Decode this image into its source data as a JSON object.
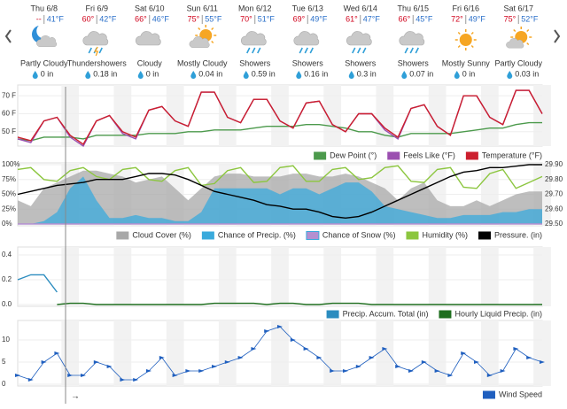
{
  "forecast": [
    {
      "date": "Thu 6/8",
      "high": "--",
      "low": "41°F",
      "condition": "Partly Cloudy",
      "precip": "0 in"
    },
    {
      "date": "Fri 6/9",
      "high": "60°",
      "low": "42°F",
      "condition": "Thundershowers",
      "precip": "0.18 in"
    },
    {
      "date": "Sat 6/10",
      "high": "66°",
      "low": "46°F",
      "condition": "Cloudy",
      "precip": "0 in"
    },
    {
      "date": "Sun 6/11",
      "high": "75°",
      "low": "55°F",
      "condition": "Mostly Cloudy",
      "precip": "0.04 in"
    },
    {
      "date": "Mon 6/12",
      "high": "70°",
      "low": "51°F",
      "condition": "Showers",
      "precip": "0.59 in"
    },
    {
      "date": "Tue 6/13",
      "high": "69°",
      "low": "49°F",
      "condition": "Showers",
      "precip": "0.16 in"
    },
    {
      "date": "Wed 6/14",
      "high": "61°",
      "low": "47°F",
      "condition": "Showers",
      "precip": "0.3 in"
    },
    {
      "date": "Thu 6/15",
      "high": "66°",
      "low": "45°F",
      "condition": "Showers",
      "precip": "0.07 in"
    },
    {
      "date": "Fri 6/16",
      "high": "72°",
      "low": "49°F",
      "condition": "Mostly Sunny",
      "precip": "0 in"
    },
    {
      "date": "Sat 6/17",
      "high": "75°",
      "low": "52°F",
      "condition": "Partly Cloudy",
      "precip": "0.03 in"
    }
  ],
  "chart_data": [
    {
      "type": "line",
      "ylim": [
        43,
        75
      ],
      "yticks": [
        {
          "value": 50,
          "label": "50 F"
        },
        {
          "value": 60,
          "label": "60 F"
        },
        {
          "value": 70,
          "label": "70 F"
        }
      ],
      "grid": true,
      "series": [
        {
          "name": "Dew Point (°)",
          "color": "#4c9a4c",
          "values": [
            46,
            45,
            47,
            47,
            47,
            46,
            48,
            48,
            48,
            48,
            49,
            49,
            49,
            50,
            50,
            51,
            51,
            51,
            52,
            53,
            53,
            53,
            54,
            54,
            53,
            52,
            50,
            50,
            48,
            47,
            49,
            49,
            49,
            49,
            50,
            51,
            52,
            52,
            54,
            55,
            55
          ]
        },
        {
          "name": "Feels Like (°F)",
          "color": "#9b4fb0",
          "values": [
            46,
            44,
            56,
            58,
            47,
            42,
            56,
            59,
            49,
            46,
            62,
            64,
            56,
            53,
            72,
            72,
            58,
            55,
            68,
            68,
            56,
            52,
            66,
            67,
            54,
            50,
            60,
            60,
            51,
            46,
            63,
            65,
            53,
            48,
            70,
            70,
            58,
            54,
            73,
            73,
            60
          ]
        },
        {
          "name": "Temperature (°F)",
          "color": "#cc1f2e",
          "values": [
            47,
            45,
            56,
            58,
            48,
            43,
            56,
            59,
            50,
            47,
            62,
            64,
            56,
            53,
            72,
            72,
            58,
            55,
            68,
            68,
            56,
            52,
            66,
            67,
            54,
            50,
            60,
            60,
            52,
            47,
            63,
            65,
            53,
            48,
            70,
            70,
            58,
            54,
            73,
            73,
            60
          ]
        }
      ]
    },
    {
      "type": "line",
      "ylim": [
        0,
        100
      ],
      "yticks": [
        {
          "value": 0,
          "label": "0%"
        },
        {
          "value": 25,
          "label": "25%"
        },
        {
          "value": 50,
          "label": "50%"
        },
        {
          "value": 75,
          "label": "75%"
        },
        {
          "value": 100,
          "label": "100%"
        }
      ],
      "grid": true,
      "y2lim": [
        29.5,
        29.9
      ],
      "y2ticks": [
        {
          "value": 29.5,
          "label": "29.50"
        },
        {
          "value": 29.6,
          "label": "29.60"
        },
        {
          "value": 29.7,
          "label": "29.70"
        },
        {
          "value": 29.8,
          "label": "29.80"
        },
        {
          "value": 29.9,
          "label": "29.90"
        }
      ],
      "series": [
        {
          "name": "Cloud Cover (%)",
          "color": "#a8a8a8",
          "style": "area",
          "values": [
            40,
            30,
            60,
            70,
            80,
            90,
            90,
            85,
            80,
            70,
            75,
            80,
            60,
            40,
            60,
            80,
            85,
            85,
            80,
            80,
            80,
            85,
            85,
            80,
            80,
            85,
            80,
            70,
            60,
            40,
            60,
            70,
            40,
            30,
            30,
            40,
            30,
            40,
            50,
            55,
            55
          ]
        },
        {
          "name": "Chance of Precip. (%)",
          "color": "#3aaadc",
          "style": "area",
          "values": [
            0,
            0,
            5,
            20,
            60,
            80,
            40,
            10,
            10,
            15,
            10,
            10,
            5,
            5,
            20,
            60,
            60,
            60,
            60,
            60,
            50,
            60,
            60,
            50,
            60,
            70,
            70,
            55,
            30,
            25,
            20,
            15,
            10,
            10,
            15,
            15,
            15,
            20,
            20,
            25,
            25
          ]
        },
        {
          "name": "Chance of Snow (%)",
          "color": "#b48fd0",
          "values": [
            0,
            0,
            0,
            0,
            0,
            0,
            0,
            0,
            0,
            0,
            0,
            0,
            0,
            0,
            0,
            0,
            0,
            0,
            0,
            0,
            0,
            0,
            0,
            0,
            0,
            0,
            0,
            0,
            0,
            0,
            0,
            0,
            0,
            0,
            0,
            0,
            0,
            0,
            0,
            0,
            0
          ]
        },
        {
          "name": "Humidity (%)",
          "color": "#8cc63f",
          "values": [
            92,
            95,
            75,
            72,
            90,
            95,
            80,
            75,
            92,
            95,
            75,
            72,
            90,
            95,
            65,
            68,
            90,
            95,
            70,
            72,
            95,
            98,
            72,
            72,
            92,
            95,
            75,
            78,
            95,
            98,
            72,
            70,
            92,
            95,
            62,
            60,
            85,
            92,
            60,
            70,
            80
          ]
        },
        {
          "name": "Pressure. (in)",
          "color": "#000000",
          "axis": "y2",
          "values": [
            29.7,
            29.72,
            29.74,
            29.76,
            29.77,
            29.78,
            29.8,
            29.8,
            29.8,
            29.82,
            29.84,
            29.84,
            29.83,
            29.8,
            29.76,
            29.72,
            29.7,
            29.68,
            29.66,
            29.63,
            29.62,
            29.6,
            29.6,
            29.58,
            29.55,
            29.54,
            29.55,
            29.58,
            29.62,
            29.66,
            29.7,
            29.74,
            29.78,
            29.82,
            29.85,
            29.86,
            29.88,
            29.88,
            29.89,
            29.9,
            29.9
          ]
        }
      ]
    },
    {
      "type": "line",
      "ylim": [
        0,
        0.45
      ],
      "yticks": [
        {
          "value": 0,
          "label": "0.0"
        },
        0.2,
        0.4
      ],
      "grid": true,
      "series": [
        {
          "name": "Precip. Accum. Total (in)",
          "color": "#2b8cbf",
          "values": [
            0.2,
            0.24,
            0.24,
            0.1,
            null,
            null,
            null,
            null,
            null,
            null,
            null,
            null,
            null,
            null,
            null,
            null,
            null,
            null,
            null,
            null,
            null,
            null,
            null,
            null,
            null,
            null,
            null,
            null,
            null,
            null,
            null,
            null,
            null,
            null,
            null,
            null,
            null,
            null,
            null,
            null,
            null
          ]
        },
        {
          "name": "Hourly Liquid Precip. (in)",
          "color": "#1e6e1e",
          "values": [
            null,
            null,
            null,
            0,
            0.01,
            0.01,
            0,
            0,
            0,
            0,
            0,
            0,
            0,
            0,
            0,
            0.01,
            0.01,
            0.01,
            0.01,
            0,
            0.01,
            0.01,
            0,
            0,
            0.01,
            0.01,
            0.01,
            0,
            0,
            0,
            0,
            0,
            0,
            0,
            0,
            0,
            0,
            0,
            0,
            0,
            0
          ]
        }
      ]
    },
    {
      "type": "line",
      "ylim": [
        0,
        14
      ],
      "yticks": [
        0,
        5,
        10
      ],
      "grid": true,
      "series": [
        {
          "name": "Wind Speed",
          "color": "#1f5fbf",
          "marker": "triangle",
          "values": [
            2,
            1,
            5,
            7,
            2,
            2,
            5,
            4,
            1,
            1,
            3,
            6,
            2,
            3,
            3,
            4,
            5,
            6,
            8,
            12,
            13,
            10,
            8,
            6,
            3,
            3,
            4,
            6,
            8,
            4,
            3,
            5,
            3,
            2,
            7,
            5,
            2,
            3,
            8,
            6,
            5
          ]
        }
      ]
    }
  ]
}
